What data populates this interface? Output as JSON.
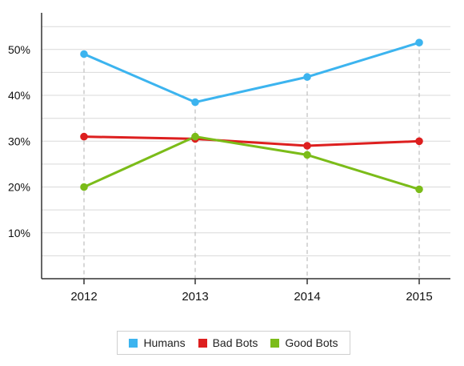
{
  "chart_data": {
    "type": "line",
    "categories": [
      "2012",
      "2013",
      "2014",
      "2015"
    ],
    "series": [
      {
        "name": "Humans",
        "values": [
          49,
          38.5,
          44,
          51.5
        ],
        "color": "#3cb4ef"
      },
      {
        "name": "Bad Bots",
        "values": [
          31,
          30.5,
          29,
          30
        ],
        "color": "#dd1f1f"
      },
      {
        "name": "Good Bots",
        "values": [
          20,
          31,
          27,
          19.5
        ],
        "color": "#7bbc19"
      }
    ],
    "y_ticks": [
      {
        "value": 10,
        "label": "10%"
      },
      {
        "value": 20,
        "label": "20%"
      },
      {
        "value": 30,
        "label": "30%"
      },
      {
        "value": 40,
        "label": "40%"
      },
      {
        "value": 50,
        "label": "50%"
      }
    ],
    "ylim": [
      0,
      58
    ],
    "grid": true,
    "legend_position": "bottom-center",
    "title": "",
    "xlabel": "",
    "ylabel": ""
  }
}
